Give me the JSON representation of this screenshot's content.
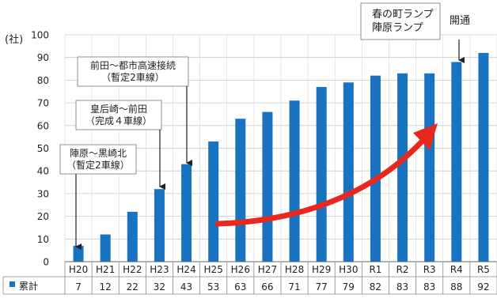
{
  "chart_data": {
    "type": "bar",
    "ylabel": "(社)",
    "ylim": [
      0,
      100
    ],
    "yticks": [
      0,
      10,
      20,
      30,
      40,
      50,
      60,
      70,
      80,
      90,
      100
    ],
    "grid": true,
    "bar_color": "#1a73c1",
    "categories": [
      "H20",
      "H21",
      "H22",
      "H23",
      "H24",
      "H25",
      "H26",
      "H27",
      "H28",
      "H29",
      "H30",
      "R1",
      "R2",
      "R3",
      "R4",
      "R5"
    ],
    "series": [
      {
        "name": "累計",
        "values": [
          7,
          12,
          22,
          32,
          43,
          53,
          63,
          66,
          71,
          77,
          79,
          82,
          83,
          83,
          88,
          92
        ]
      }
    ],
    "table_row_label": "累計",
    "annotations": [
      {
        "label_lines": [
          "陣原～黒崎北",
          "（暫定2車線）"
        ],
        "category": "H20"
      },
      {
        "label_lines": [
          "皇后崎～前田",
          "（完成４車線）"
        ],
        "category": "H23"
      },
      {
        "label_lines": [
          "前田～都市高速接続",
          "（暫定2車線）"
        ],
        "category": "H24"
      },
      {
        "label_lines": [
          "春の町ランプ",
          "陣原ランプ",
          "開通"
        ],
        "category": "R4"
      }
    ],
    "trend_arrow_color": "#e8281e"
  }
}
